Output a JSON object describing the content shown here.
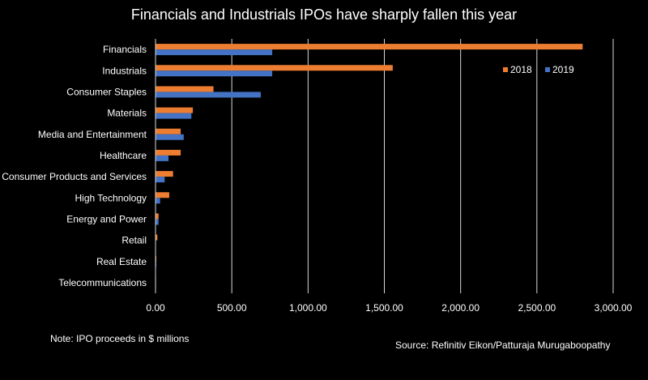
{
  "chart_data": {
    "type": "bar",
    "orientation": "horizontal",
    "title": "Financials and Industrials IPOs have sharply fallen this year",
    "categories": [
      "Financials",
      "Industrials",
      "Consumer Staples",
      "Materials",
      "Media and Entertainment",
      "Healthcare",
      "Consumer Products and Services",
      "High Technology",
      "Energy and Power",
      "Retail",
      "Real Estate",
      "Telecommunications"
    ],
    "series": [
      {
        "name": "2018",
        "color": "#ED7D31",
        "values": [
          2800,
          1555,
          380,
          245,
          165,
          165,
          115,
          90,
          20,
          12,
          5,
          3
        ]
      },
      {
        "name": "2019",
        "color": "#4472C4",
        "values": [
          765,
          765,
          690,
          235,
          185,
          85,
          60,
          30,
          20,
          0,
          5,
          3
        ]
      }
    ],
    "xlim": [
      0,
      3000
    ],
    "xticks": [
      0,
      500,
      1000,
      1500,
      2000,
      2500,
      3000
    ],
    "xtick_labels": [
      "0.00",
      "500.00",
      "1,000.00",
      "1,500.00",
      "2,000.00",
      "2,500.00",
      "3,000.00"
    ],
    "gridlines": true,
    "legend_position": "top-right"
  },
  "note": "Note: IPO proceeds in $ millions",
  "source": "Source: Refinitiv Eikon/Patturaja Murugaboopathy"
}
